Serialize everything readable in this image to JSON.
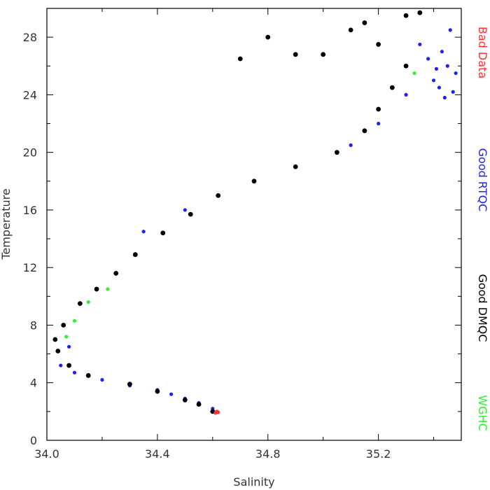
{
  "chart_data": {
    "type": "scatter",
    "title": "",
    "xlabel": "Salinity",
    "ylabel": "Temperature",
    "xlim": [
      34.0,
      35.5
    ],
    "ylim": [
      0,
      30
    ],
    "x_ticks": [
      34.0,
      34.4,
      34.8,
      35.2
    ],
    "x_tick_labels": [
      "34.0",
      "34.4",
      "34.8",
      "35.2"
    ],
    "y_ticks": [
      0,
      4,
      8,
      12,
      16,
      20,
      24,
      28
    ],
    "y_tick_labels": [
      "0",
      "4",
      "8",
      "12",
      "16",
      "20",
      "24",
      "28"
    ],
    "grid": false,
    "legend_position": "right-side-vertical",
    "series": [
      {
        "name": "Bad Data",
        "color": "#ff3333",
        "points": [
          [
            34.61,
            1.9
          ],
          [
            34.62,
            1.95
          ],
          [
            34.615,
            2.0
          ]
        ]
      },
      {
        "name": "Good RTQC",
        "color": "#2222ee",
        "points": [
          [
            34.6,
            2.2
          ],
          [
            34.55,
            2.6
          ],
          [
            34.5,
            2.9
          ],
          [
            34.45,
            3.2
          ],
          [
            34.4,
            3.5
          ],
          [
            34.3,
            3.8
          ],
          [
            34.2,
            4.2
          ],
          [
            34.1,
            4.7
          ],
          [
            34.05,
            5.2
          ],
          [
            34.08,
            6.5
          ],
          [
            34.35,
            14.5
          ],
          [
            34.5,
            16.0
          ],
          [
            35.1,
            20.5
          ],
          [
            35.2,
            22.0
          ],
          [
            35.3,
            24.0
          ],
          [
            35.4,
            25.0
          ],
          [
            35.45,
            26.0
          ],
          [
            35.42,
            24.5
          ],
          [
            35.48,
            25.5
          ],
          [
            35.38,
            26.5
          ],
          [
            35.43,
            27.0
          ],
          [
            35.46,
            28.5
          ],
          [
            35.35,
            27.5
          ],
          [
            35.47,
            24.2
          ],
          [
            35.41,
            25.8
          ],
          [
            35.44,
            23.8
          ]
        ]
      },
      {
        "name": "Good DMQC",
        "color": "#000000",
        "points": [
          [
            34.6,
            2.0
          ],
          [
            34.55,
            2.5
          ],
          [
            34.5,
            2.8
          ],
          [
            34.4,
            3.4
          ],
          [
            34.3,
            3.9
          ],
          [
            34.15,
            4.5
          ],
          [
            34.08,
            5.2
          ],
          [
            34.04,
            6.2
          ],
          [
            34.03,
            7.0
          ],
          [
            34.06,
            8.0
          ],
          [
            34.12,
            9.5
          ],
          [
            34.18,
            10.5
          ],
          [
            34.25,
            11.6
          ],
          [
            34.32,
            12.9
          ],
          [
            34.42,
            14.4
          ],
          [
            34.52,
            15.7
          ],
          [
            34.62,
            17.0
          ],
          [
            34.75,
            18.0
          ],
          [
            34.9,
            19.0
          ],
          [
            35.05,
            20.0
          ],
          [
            35.15,
            21.5
          ],
          [
            35.2,
            23.0
          ],
          [
            35.25,
            24.5
          ],
          [
            35.3,
            26.0
          ],
          [
            35.2,
            27.5
          ],
          [
            35.3,
            29.5
          ],
          [
            35.1,
            28.5
          ],
          [
            34.8,
            28.0
          ],
          [
            34.9,
            26.8
          ],
          [
            35.0,
            26.8
          ],
          [
            34.7,
            26.5
          ],
          [
            35.15,
            29.0
          ],
          [
            35.35,
            29.7
          ]
        ]
      },
      {
        "name": "WGHC",
        "color": "#33ee33",
        "points": [
          [
            34.07,
            7.2
          ],
          [
            34.1,
            8.3
          ],
          [
            34.15,
            9.6
          ],
          [
            34.22,
            10.5
          ],
          [
            35.33,
            25.5
          ]
        ]
      }
    ]
  }
}
